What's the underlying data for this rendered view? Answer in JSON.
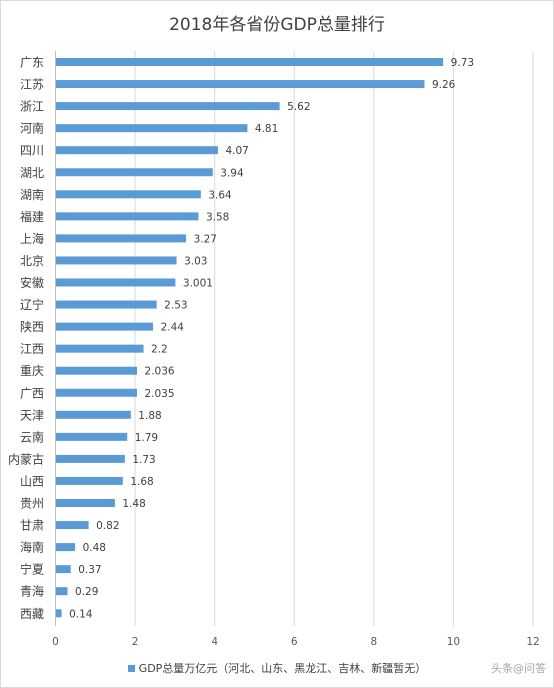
{
  "chart_data": {
    "type": "bar",
    "orientation": "horizontal",
    "title": "2018年各省份GDP总量排行",
    "categories": [
      "广东",
      "江苏",
      "浙江",
      "河南",
      "四川",
      "湖北",
      "湖南",
      "福建",
      "上海",
      "北京",
      "安徽",
      "辽宁",
      "陕西",
      "江西",
      "重庆",
      "广西",
      "天津",
      "云南",
      "内蒙古",
      "山西",
      "贵州",
      "甘肃",
      "海南",
      "宁夏",
      "青海",
      "西藏"
    ],
    "value_labels": [
      "9.73",
      "9.26",
      "5.62",
      "4.81",
      "4.07",
      "3.94",
      "3.64",
      "3.58",
      "3.27",
      "3.03",
      "3.001",
      "2.53",
      "2.44",
      "2.2",
      "2.036",
      "2.035",
      "1.88",
      "1.79",
      "1.73",
      "1.68",
      "1.48",
      "0.82",
      "0.48",
      "0.37",
      "0.29",
      "0.14"
    ],
    "series": [
      {
        "name": "GDP总量万亿元（河北、山东、黑龙江、吉林、新疆暂无）",
        "values": [
          9.73,
          9.26,
          5.62,
          4.81,
          4.07,
          3.94,
          3.64,
          3.58,
          3.27,
          3.03,
          3.001,
          2.53,
          2.44,
          2.2,
          2.036,
          2.035,
          1.88,
          1.79,
          1.73,
          1.68,
          1.48,
          0.82,
          0.48,
          0.37,
          0.29,
          0.14
        ]
      }
    ],
    "xlim": [
      0,
      12
    ],
    "x_ticks": [
      "0",
      "2",
      "4",
      "6",
      "8",
      "10",
      "12"
    ],
    "grid": true,
    "legend_position": "bottom",
    "color": "#5b9bd5"
  },
  "watermark": "头条@问答"
}
